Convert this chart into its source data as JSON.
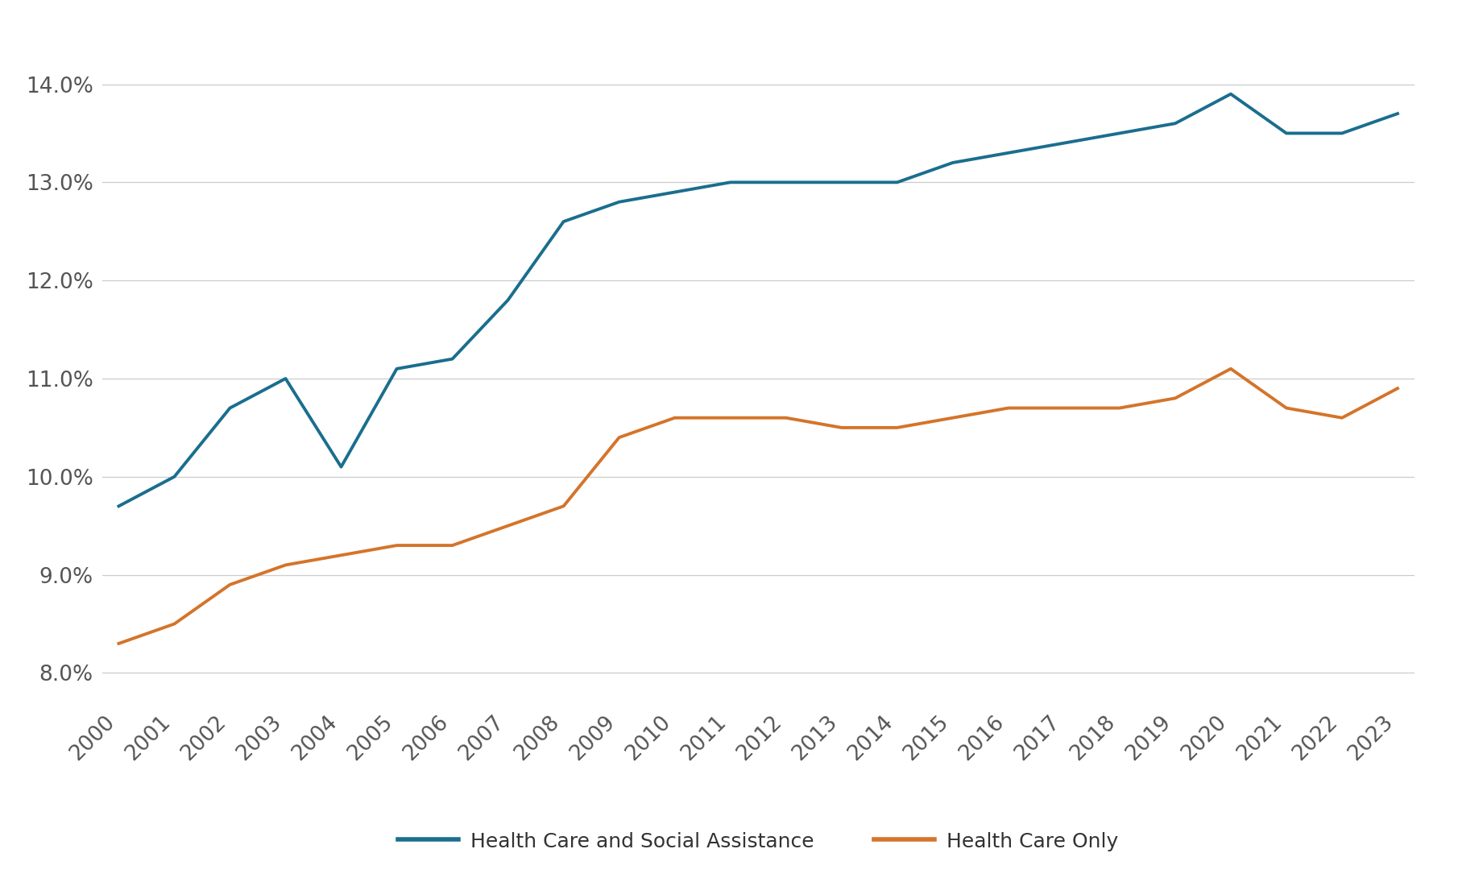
{
  "years": [
    2000,
    2001,
    2002,
    2003,
    2004,
    2005,
    2006,
    2007,
    2008,
    2009,
    2010,
    2011,
    2012,
    2013,
    2014,
    2015,
    2016,
    2017,
    2018,
    2019,
    2020,
    2021,
    2022,
    2023
  ],
  "hcsa": [
    0.097,
    0.1,
    0.107,
    0.11,
    0.101,
    0.111,
    0.112,
    0.118,
    0.126,
    0.128,
    0.129,
    0.13,
    0.13,
    0.13,
    0.13,
    0.132,
    0.133,
    0.134,
    0.135,
    0.136,
    0.139,
    0.135,
    0.135,
    0.137
  ],
  "hco": [
    0.083,
    0.085,
    0.089,
    0.091,
    0.092,
    0.093,
    0.093,
    0.095,
    0.097,
    0.104,
    0.106,
    0.106,
    0.106,
    0.105,
    0.105,
    0.106,
    0.107,
    0.107,
    0.107,
    0.108,
    0.111,
    0.107,
    0.106,
    0.109
  ],
  "hcsa_color": "#1a6e8e",
  "hco_color": "#d4742a",
  "hcsa_label": "Health Care and Social Assistance",
  "hco_label": "Health Care Only",
  "yticks": [
    0.08,
    0.09,
    0.1,
    0.11,
    0.12,
    0.13,
    0.14
  ],
  "ytick_labels": [
    "8.0%",
    "9.0%",
    "10.0%",
    "11.0%",
    "12.0%",
    "13.0%",
    "14.0%"
  ],
  "ylim": [
    0.077,
    0.145
  ],
  "background_color": "#ffffff",
  "grid_color": "#cccccc",
  "line_width": 2.8,
  "legend_fontsize": 18,
  "tick_fontsize": 19
}
